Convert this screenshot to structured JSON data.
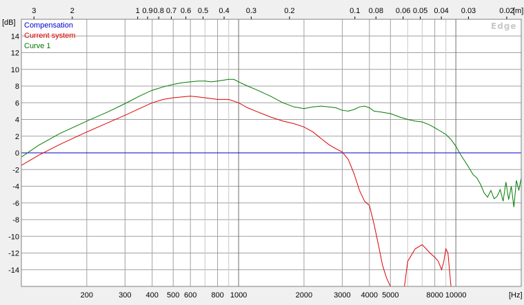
{
  "chart_data": {
    "type": "line",
    "xscale": "log",
    "xlim": [
      100,
      20000
    ],
    "ylim": [
      -16,
      16
    ],
    "x_unit": "[Hz]",
    "y_unit": "[dB]",
    "top_unit": "[m]",
    "watermark": "Edge",
    "grid": true,
    "legend_placement": "top-left",
    "x_ticks": [
      {
        "v": 200,
        "label": "200"
      },
      {
        "v": 300,
        "label": "300"
      },
      {
        "v": 400,
        "label": "400"
      },
      {
        "v": 500,
        "label": "500"
      },
      {
        "v": 600,
        "label": "600"
      },
      {
        "v": 800,
        "label": "800"
      },
      {
        "v": 1000,
        "label": "1000"
      },
      {
        "v": 2000,
        "label": "2000"
      },
      {
        "v": 3000,
        "label": "3000"
      },
      {
        "v": 4000,
        "label": "4000"
      },
      {
        "v": 5000,
        "label": "5000"
      },
      {
        "v": 8000,
        "label": "8000"
      },
      {
        "v": 10000,
        "label": "10000"
      }
    ],
    "x_minor_grid": [
      700,
      900,
      6000,
      7000,
      9000
    ],
    "y_ticks": [
      14,
      12,
      10,
      8,
      6,
      4,
      2,
      0,
      -2,
      -4,
      -6,
      -8,
      -10,
      -12,
      -14
    ],
    "top_ticks": [
      {
        "label": "3",
        "hz": 114.3
      },
      {
        "label": "2",
        "hz": 171.5
      },
      {
        "label": "1",
        "hz": 343
      },
      {
        "label": "0.9",
        "hz": 381
      },
      {
        "label": "0.8",
        "hz": 428.8
      },
      {
        "label": "0.7",
        "hz": 490
      },
      {
        "label": "0.6",
        "hz": 571.7
      },
      {
        "label": "0.5",
        "hz": 686
      },
      {
        "label": "0.4",
        "hz": 857.5
      },
      {
        "label": "0.3",
        "hz": 1143
      },
      {
        "label": "0.2",
        "hz": 1715
      },
      {
        "label": "0.1",
        "hz": 3430
      },
      {
        "label": "0.08",
        "hz": 4288
      },
      {
        "label": "0.06",
        "hz": 5717
      },
      {
        "label": "0.05",
        "hz": 6860
      },
      {
        "label": "0.04",
        "hz": 8575
      },
      {
        "label": "0.03",
        "hz": 11433
      },
      {
        "label": "0.02",
        "hz": 17150
      }
    ],
    "series": [
      {
        "name": "Compensation",
        "color": "#0000cc",
        "x": [
          100,
          20000
        ],
        "y": [
          0,
          0
        ]
      },
      {
        "name": "Current system",
        "color": "#dd0000",
        "x": [
          100,
          120,
          150,
          200,
          250,
          300,
          350,
          400,
          450,
          500,
          550,
          600,
          650,
          700,
          750,
          800,
          900,
          1000,
          1100,
          1200,
          1400,
          1600,
          1800,
          2000,
          2200,
          2400,
          2600,
          2800,
          3000,
          3200,
          3400,
          3600,
          3800,
          4000,
          4200,
          4400,
          4600,
          4800,
          5000,
          5200,
          5500,
          5800,
          6000,
          6500,
          7000,
          7300,
          7600,
          8000,
          8300,
          8600,
          8800,
          9000,
          9200,
          9500,
          9700,
          10000
        ],
        "y": [
          -1.5,
          -0.3,
          1.0,
          2.5,
          3.6,
          4.5,
          5.3,
          6.0,
          6.4,
          6.6,
          6.7,
          6.8,
          6.7,
          6.6,
          6.5,
          6.4,
          6.4,
          6.0,
          5.4,
          5.0,
          4.3,
          3.8,
          3.5,
          3.1,
          2.5,
          1.7,
          1.0,
          0.5,
          0.1,
          -0.8,
          -2.5,
          -4.5,
          -5.8,
          -6.3,
          -8.5,
          -11.0,
          -13.5,
          -15.0,
          -16,
          -16,
          -16,
          -16,
          -13.0,
          -11.5,
          -11.0,
          -11.5,
          -12.0,
          -12.5,
          -13.0,
          -14.0,
          -13.0,
          -11.5,
          -12.0,
          -16,
          -16,
          -16
        ]
      },
      {
        "name": "Curve 1",
        "color": "#007a00",
        "x": [
          100,
          120,
          150,
          200,
          250,
          300,
          350,
          400,
          450,
          500,
          550,
          600,
          650,
          700,
          750,
          800,
          850,
          900,
          950,
          1000,
          1100,
          1200,
          1400,
          1600,
          1800,
          2000,
          2200,
          2400,
          2600,
          2800,
          3000,
          3200,
          3400,
          3600,
          3800,
          4000,
          4200,
          4500,
          5000,
          5500,
          6000,
          6500,
          7000,
          7500,
          8000,
          8500,
          9000,
          9500,
          10000,
          10500,
          11000,
          11500,
          12000,
          12500,
          13000,
          13500,
          14000,
          14500,
          15000,
          15500,
          16000,
          16500,
          17000,
          17500,
          18000,
          18500,
          19000,
          19500,
          20000
        ],
        "y": [
          -0.5,
          0.9,
          2.3,
          3.8,
          4.9,
          5.9,
          6.8,
          7.5,
          7.9,
          8.2,
          8.4,
          8.5,
          8.6,
          8.6,
          8.5,
          8.6,
          8.7,
          8.8,
          8.8,
          8.5,
          8.0,
          7.6,
          6.8,
          6.0,
          5.5,
          5.3,
          5.5,
          5.6,
          5.5,
          5.4,
          5.1,
          5.0,
          5.2,
          5.5,
          5.6,
          5.4,
          5.0,
          4.9,
          4.7,
          4.3,
          4.0,
          3.8,
          3.7,
          3.4,
          3.0,
          2.6,
          2.2,
          1.6,
          0.8,
          -0.2,
          -1.0,
          -1.8,
          -2.6,
          -3.0,
          -3.8,
          -4.8,
          -5.3,
          -4.5,
          -5.5,
          -5.2,
          -4.4,
          -5.8,
          -3.5,
          -5.6,
          -4.0,
          -6.5,
          -3.3,
          -4.5,
          -3.0
        ]
      }
    ]
  }
}
